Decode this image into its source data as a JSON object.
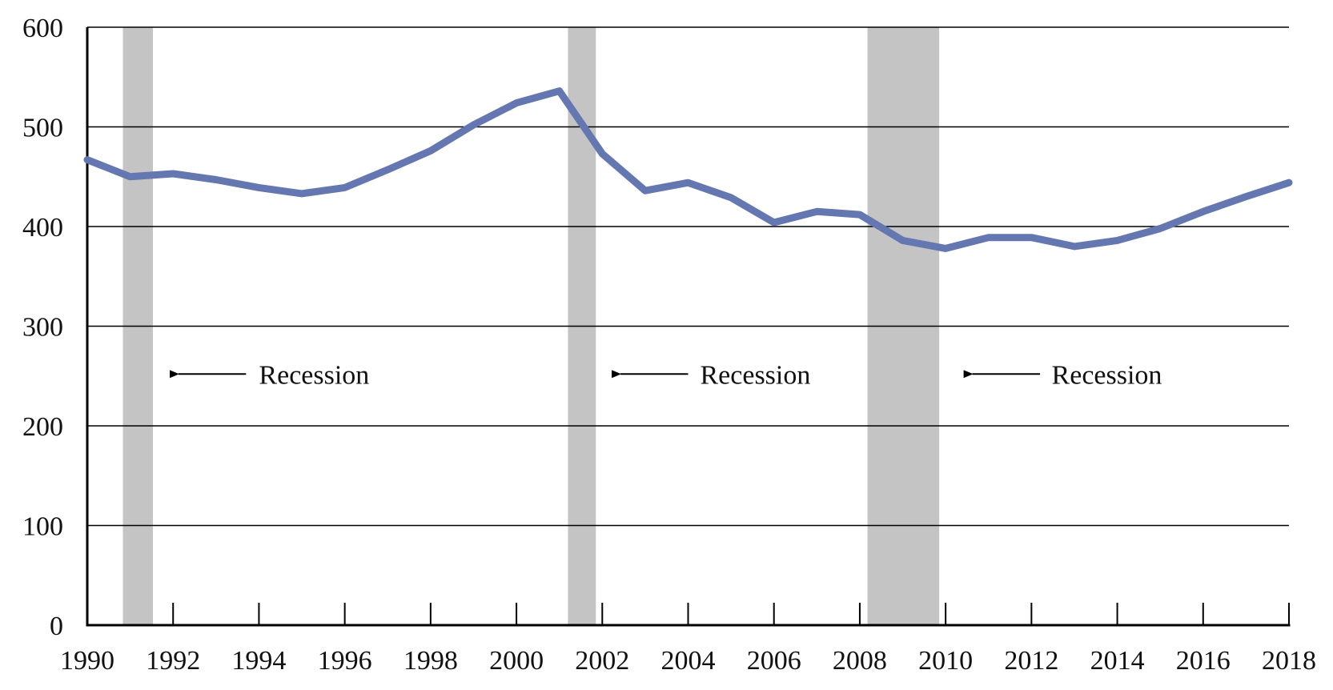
{
  "colors": {
    "line": "#6577b1",
    "recession": "#c4c4c4",
    "grid": "#000000",
    "axis": "#000000"
  },
  "chart_data": {
    "type": "line",
    "title": "",
    "xlabel": "",
    "ylabel": "",
    "xlim": [
      1990,
      2018
    ],
    "ylim": [
      0,
      600
    ],
    "grid": true,
    "x": [
      1990,
      1991,
      1992,
      1993,
      1994,
      1995,
      1996,
      1997,
      1998,
      1999,
      2000,
      2001,
      2002,
      2003,
      2004,
      2005,
      2006,
      2007,
      2008,
      2009,
      2010,
      2011,
      2012,
      2013,
      2014,
      2015,
      2016,
      2017,
      2018
    ],
    "series": [
      {
        "values": [
          467,
          450,
          453,
          447,
          439,
          433,
          439,
          457,
          476,
          502,
          524,
          536,
          473,
          436,
          444,
          429,
          404,
          415,
          412,
          386,
          378,
          389,
          389,
          380,
          386,
          398,
          415,
          430,
          444
        ]
      }
    ],
    "x_ticks": [
      1990,
      1992,
      1994,
      1996,
      1998,
      2000,
      2002,
      2004,
      2006,
      2008,
      2010,
      2012,
      2014,
      2016,
      2018
    ],
    "x_tick_labels": [
      "1990",
      "1992",
      "1994",
      "1996",
      "1998",
      "2000",
      "2002",
      "2004",
      "2006",
      "2008",
      "2010",
      "2012",
      "2014",
      "2016",
      "2018"
    ],
    "y_ticks": [
      0,
      100,
      200,
      300,
      400,
      500,
      600
    ],
    "y_tick_labels": [
      "0",
      "100",
      "200",
      "300",
      "400",
      "500",
      "600"
    ],
    "recessions": [
      {
        "start": 1990.83,
        "end": 1991.53
      },
      {
        "start": 2001.2,
        "end": 2001.85
      },
      {
        "start": 2008.18,
        "end": 2009.85
      }
    ],
    "annotations": [
      {
        "text": "Recession",
        "x": 1994,
        "y": 252,
        "arrow_to_x": 1991.9,
        "arrow_from_x": 1993.7
      },
      {
        "text": "Recession",
        "x": 2004.28,
        "y": 252,
        "arrow_to_x": 2002.2,
        "arrow_from_x": 2004.0
      },
      {
        "text": "Recession",
        "x": 2012.47,
        "y": 252,
        "arrow_to_x": 2010.4,
        "arrow_from_x": 2012.2
      }
    ]
  }
}
